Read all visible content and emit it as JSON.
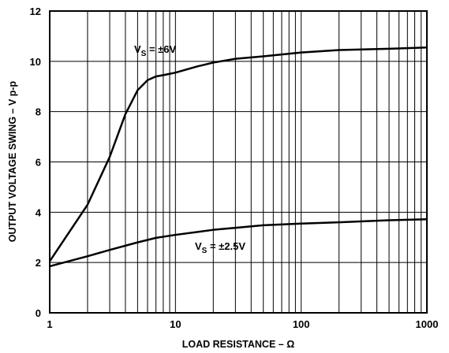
{
  "chart_data": {
    "type": "line",
    "title": "",
    "xlabel": "LOAD RESISTANCE – Ω",
    "ylabel": "OUTPUT VOLTAGE SWING – V p-p",
    "x_scale": "log",
    "xlim": [
      1,
      1000
    ],
    "ylim": [
      0,
      12
    ],
    "x_ticks": [
      "1",
      "10",
      "100",
      "1000"
    ],
    "y_ticks": [
      "0",
      "2",
      "4",
      "6",
      "8",
      "10",
      "12"
    ],
    "grid": true,
    "legend": "none",
    "series": [
      {
        "label_main": "V",
        "label_sub": "S",
        "label_rest": " = ±6V",
        "color": "#000000",
        "points": [
          [
            1,
            2.05
          ],
          [
            2,
            4.3
          ],
          [
            3,
            6.2
          ],
          [
            4,
            7.9
          ],
          [
            5,
            8.85
          ],
          [
            6,
            9.25
          ],
          [
            7,
            9.4
          ],
          [
            8,
            9.45
          ],
          [
            10,
            9.55
          ],
          [
            15,
            9.8
          ],
          [
            20,
            9.95
          ],
          [
            30,
            10.1
          ],
          [
            50,
            10.2
          ],
          [
            100,
            10.35
          ],
          [
            200,
            10.45
          ],
          [
            500,
            10.5
          ],
          [
            1000,
            10.55
          ]
        ]
      },
      {
        "label_main": "V",
        "label_sub": "S",
        "label_rest": " = ±2.5V",
        "color": "#000000",
        "points": [
          [
            1,
            1.85
          ],
          [
            2,
            2.25
          ],
          [
            3,
            2.5
          ],
          [
            5,
            2.8
          ],
          [
            7,
            2.98
          ],
          [
            10,
            3.1
          ],
          [
            20,
            3.3
          ],
          [
            30,
            3.38
          ],
          [
            50,
            3.48
          ],
          [
            100,
            3.55
          ],
          [
            200,
            3.6
          ],
          [
            500,
            3.68
          ],
          [
            1000,
            3.72
          ]
        ]
      }
    ]
  }
}
